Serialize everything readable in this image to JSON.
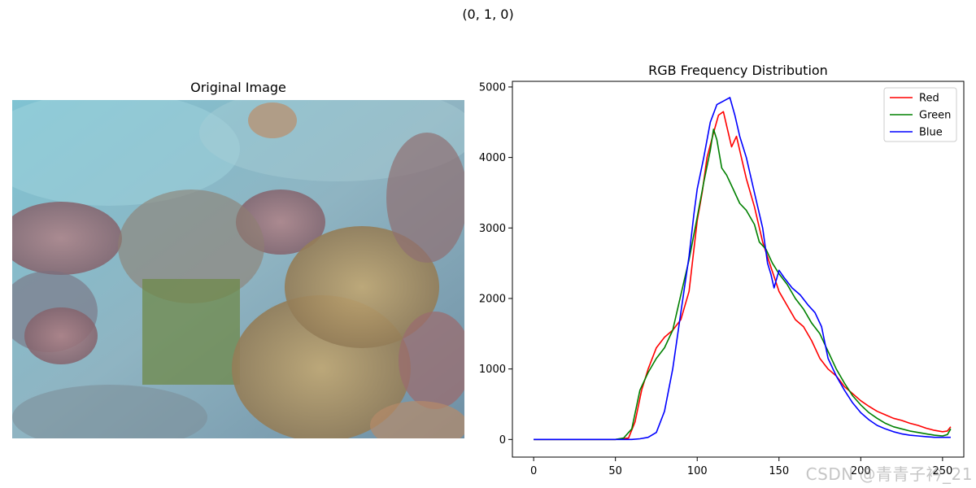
{
  "figure": {
    "suptitle": "(0, 1, 0)",
    "left_title": "Original Image",
    "watermark": "CSDN @青青子衿_21"
  },
  "chart_data": {
    "type": "line",
    "title": "RGB Frequency Distribution",
    "xlabel": "",
    "ylabel": "",
    "xlim": [
      -13,
      263
    ],
    "ylim": [
      -250,
      5080
    ],
    "xticks": [
      0,
      50,
      100,
      150,
      200,
      250
    ],
    "yticks": [
      0,
      1000,
      2000,
      3000,
      4000,
      5000
    ],
    "grid": false,
    "legend_position": "top-right",
    "series": [
      {
        "name": "Red",
        "color": "#ff0000",
        "points": [
          [
            0,
            0
          ],
          [
            50,
            0
          ],
          [
            58,
            20
          ],
          [
            62,
            250
          ],
          [
            66,
            700
          ],
          [
            70,
            1000
          ],
          [
            75,
            1300
          ],
          [
            80,
            1450
          ],
          [
            85,
            1550
          ],
          [
            90,
            1700
          ],
          [
            95,
            2100
          ],
          [
            100,
            3100
          ],
          [
            103,
            3500
          ],
          [
            106,
            4000
          ],
          [
            110,
            4350
          ],
          [
            113,
            4600
          ],
          [
            116,
            4650
          ],
          [
            118,
            4450
          ],
          [
            121,
            4150
          ],
          [
            124,
            4300
          ],
          [
            127,
            4000
          ],
          [
            130,
            3700
          ],
          [
            135,
            3300
          ],
          [
            140,
            2800
          ],
          [
            145,
            2450
          ],
          [
            150,
            2100
          ],
          [
            155,
            1900
          ],
          [
            160,
            1700
          ],
          [
            165,
            1600
          ],
          [
            170,
            1400
          ],
          [
            175,
            1150
          ],
          [
            180,
            1000
          ],
          [
            185,
            900
          ],
          [
            190,
            750
          ],
          [
            195,
            650
          ],
          [
            200,
            550
          ],
          [
            205,
            470
          ],
          [
            210,
            400
          ],
          [
            215,
            350
          ],
          [
            220,
            300
          ],
          [
            225,
            270
          ],
          [
            230,
            230
          ],
          [
            235,
            200
          ],
          [
            240,
            160
          ],
          [
            245,
            130
          ],
          [
            250,
            110
          ],
          [
            253,
            120
          ],
          [
            255,
            180
          ]
        ]
      },
      {
        "name": "Green",
        "color": "#008000",
        "points": [
          [
            0,
            0
          ],
          [
            50,
            0
          ],
          [
            55,
            20
          ],
          [
            60,
            150
          ],
          [
            65,
            700
          ],
          [
            70,
            950
          ],
          [
            75,
            1150
          ],
          [
            80,
            1300
          ],
          [
            85,
            1550
          ],
          [
            90,
            2050
          ],
          [
            95,
            2550
          ],
          [
            100,
            3150
          ],
          [
            104,
            3650
          ],
          [
            108,
            4100
          ],
          [
            110,
            4400
          ],
          [
            112,
            4250
          ],
          [
            115,
            3850
          ],
          [
            118,
            3750
          ],
          [
            122,
            3550
          ],
          [
            126,
            3350
          ],
          [
            130,
            3250
          ],
          [
            135,
            3050
          ],
          [
            138,
            2800
          ],
          [
            142,
            2700
          ],
          [
            146,
            2500
          ],
          [
            150,
            2350
          ],
          [
            155,
            2200
          ],
          [
            160,
            2000
          ],
          [
            165,
            1850
          ],
          [
            170,
            1650
          ],
          [
            175,
            1500
          ],
          [
            180,
            1250
          ],
          [
            185,
            1000
          ],
          [
            190,
            800
          ],
          [
            195,
            620
          ],
          [
            200,
            490
          ],
          [
            205,
            380
          ],
          [
            210,
            300
          ],
          [
            215,
            230
          ],
          [
            220,
            180
          ],
          [
            225,
            150
          ],
          [
            230,
            120
          ],
          [
            235,
            100
          ],
          [
            240,
            80
          ],
          [
            245,
            60
          ],
          [
            250,
            50
          ],
          [
            253,
            70
          ],
          [
            255,
            150
          ]
        ]
      },
      {
        "name": "Blue",
        "color": "#0000ff",
        "points": [
          [
            0,
            0
          ],
          [
            60,
            0
          ],
          [
            65,
            10
          ],
          [
            70,
            30
          ],
          [
            75,
            100
          ],
          [
            80,
            400
          ],
          [
            85,
            1000
          ],
          [
            90,
            1800
          ],
          [
            95,
            2600
          ],
          [
            98,
            3200
          ],
          [
            100,
            3550
          ],
          [
            104,
            4000
          ],
          [
            108,
            4500
          ],
          [
            112,
            4750
          ],
          [
            116,
            4800
          ],
          [
            120,
            4850
          ],
          [
            123,
            4600
          ],
          [
            126,
            4300
          ],
          [
            130,
            4000
          ],
          [
            135,
            3500
          ],
          [
            140,
            3000
          ],
          [
            143,
            2500
          ],
          [
            145,
            2350
          ],
          [
            147,
            2150
          ],
          [
            150,
            2400
          ],
          [
            153,
            2300
          ],
          [
            158,
            2150
          ],
          [
            163,
            2050
          ],
          [
            168,
            1900
          ],
          [
            172,
            1800
          ],
          [
            176,
            1600
          ],
          [
            180,
            1150
          ],
          [
            185,
            900
          ],
          [
            190,
            700
          ],
          [
            195,
            520
          ],
          [
            200,
            380
          ],
          [
            205,
            280
          ],
          [
            210,
            200
          ],
          [
            215,
            150
          ],
          [
            220,
            110
          ],
          [
            225,
            80
          ],
          [
            230,
            60
          ],
          [
            235,
            50
          ],
          [
            240,
            40
          ],
          [
            245,
            30
          ],
          [
            250,
            30
          ],
          [
            255,
            30
          ]
        ]
      }
    ]
  }
}
